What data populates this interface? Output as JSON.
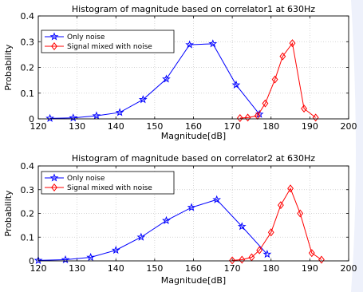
{
  "chart_data": [
    {
      "type": "line",
      "title": "Histogram of magnitude based on correlator1 at 630Hz",
      "xlabel": "Magnitude[dB]",
      "ylabel": "Probability",
      "xlim": [
        120,
        200
      ],
      "ylim": [
        0,
        0.4
      ],
      "xticks": [
        "120",
        "130",
        "140",
        "150",
        "160",
        "170",
        "180",
        "190",
        "200"
      ],
      "yticks": [
        "0",
        "0.1",
        "0.2",
        "0.3",
        "0.4"
      ],
      "grid": true,
      "legend": "top-left",
      "series": [
        {
          "name": "Only noise",
          "color": "#0000ff",
          "marker": "star",
          "x": [
            123,
            129,
            135,
            141,
            147,
            153,
            159,
            165,
            171,
            177
          ],
          "y": [
            0.002,
            0.004,
            0.012,
            0.025,
            0.075,
            0.155,
            0.288,
            0.292,
            0.132,
            0.018
          ]
        },
        {
          "name": "Signal mixed with noise",
          "color": "#ff0000",
          "marker": "diamond",
          "x": [
            172,
            174,
            176.5,
            178.5,
            181,
            183,
            185.5,
            188.5,
            191.5
          ],
          "y": [
            0.003,
            0.005,
            0.012,
            0.06,
            0.153,
            0.243,
            0.294,
            0.04,
            0.005
          ]
        }
      ]
    },
    {
      "type": "line",
      "title": "Histogram of magnitude based on correlator2 at 630Hz",
      "xlabel": "Magnitude[dB]",
      "ylabel": "Probability",
      "xlim": [
        120,
        200
      ],
      "ylim": [
        0,
        0.4
      ],
      "xticks": [
        "120",
        "130",
        "140",
        "150",
        "160",
        "170",
        "180",
        "190",
        "200"
      ],
      "yticks": [
        "0",
        "0.1",
        "0.2",
        "0.3",
        "0.4"
      ],
      "grid": true,
      "legend": "top-left",
      "series": [
        {
          "name": "Only noise",
          "color": "#0000ff",
          "marker": "star",
          "x": [
            120,
            127,
            133.5,
            140,
            146.5,
            153,
            159.5,
            166,
            172.5,
            179
          ],
          "y": [
            0.002,
            0.005,
            0.015,
            0.045,
            0.1,
            0.17,
            0.225,
            0.258,
            0.145,
            0.028
          ]
        },
        {
          "name": "Signal mixed with noise",
          "color": "#ff0000",
          "marker": "diamond",
          "x": [
            170,
            172.5,
            175,
            177,
            180,
            182.5,
            185,
            187.5,
            190.5,
            193
          ],
          "y": [
            0.002,
            0.005,
            0.015,
            0.045,
            0.12,
            0.235,
            0.305,
            0.2,
            0.033,
            0.005
          ]
        }
      ]
    }
  ]
}
